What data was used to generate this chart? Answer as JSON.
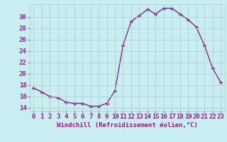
{
  "x": [
    0,
    1,
    2,
    3,
    4,
    5,
    6,
    7,
    8,
    9,
    10,
    11,
    12,
    13,
    14,
    15,
    16,
    17,
    18,
    19,
    20,
    21,
    22,
    23
  ],
  "y": [
    17.5,
    16.8,
    16.0,
    15.8,
    15.0,
    14.8,
    14.8,
    14.3,
    14.3,
    14.8,
    17.0,
    25.0,
    29.2,
    30.2,
    31.3,
    30.5,
    31.5,
    31.5,
    30.5,
    29.5,
    28.2,
    25.0,
    21.0,
    18.5
  ],
  "line_color": "#882288",
  "marker": "D",
  "marker_size": 2.2,
  "bg_color": "#c8eef0",
  "grid_color": "#aacccc",
  "xlabel": "Windchill (Refroidissement éolien,°C)",
  "xlabel_color": "#882288",
  "tick_color": "#882288",
  "ylim": [
    13.5,
    32.2
  ],
  "xlim": [
    -0.5,
    23.5
  ],
  "yticks": [
    14,
    16,
    18,
    20,
    22,
    24,
    26,
    28,
    30
  ],
  "xticks": [
    0,
    1,
    2,
    3,
    4,
    5,
    6,
    7,
    8,
    9,
    10,
    11,
    12,
    13,
    14,
    15,
    16,
    17,
    18,
    19,
    20,
    21,
    22,
    23
  ],
  "line_width": 1.0,
  "font_size": 6.5
}
